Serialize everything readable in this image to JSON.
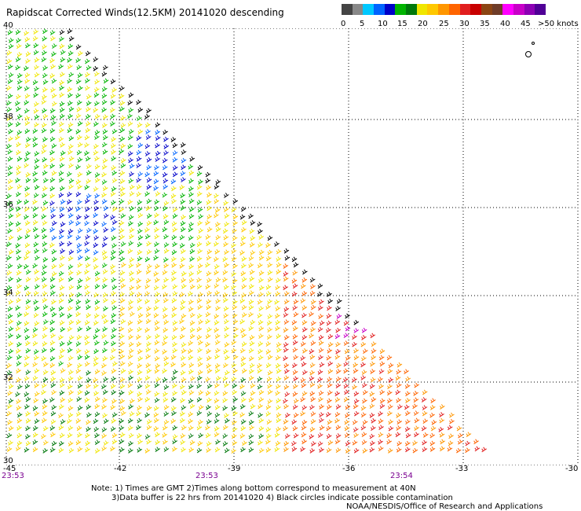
{
  "title": "Rapidscat Corrected Winds(12.5KM) 20141020 descending",
  "colorbar": {
    "colors": [
      "#444444",
      "#888888",
      "#00c8ff",
      "#0064ff",
      "#0000c8",
      "#00b400",
      "#00780a",
      "#f0e600",
      "#ffc800",
      "#ff9600",
      "#ff6400",
      "#e11e1e",
      "#c80000",
      "#8b4513",
      "#6e3c28",
      "#ff00ff",
      "#c800c8",
      "#8c00b4",
      "#500096"
    ],
    "labels": [
      "0",
      "5",
      "10",
      "15",
      "20",
      "25",
      "30",
      "35",
      "40",
      "45",
      ">50 knots"
    ]
  },
  "map": {
    "lat_labels": [
      "40",
      "38",
      "36",
      "34",
      "32",
      "30"
    ],
    "lon_labels": [
      "-45",
      "-42",
      "-39",
      "-36",
      "-33",
      "-30"
    ],
    "time_labels": [
      "23:53",
      "23:53",
      "23:54"
    ]
  },
  "notes": {
    "line1": "Note: 1) Times are GMT 2)Times along bottom correspond to measurement at 40N",
    "line2": "3)Data buffer is 22 hrs from 20141020 4) Black circles indicate possible contamination",
    "line3": "NOAA/NESDIS/Office of Research and Applications"
  }
}
